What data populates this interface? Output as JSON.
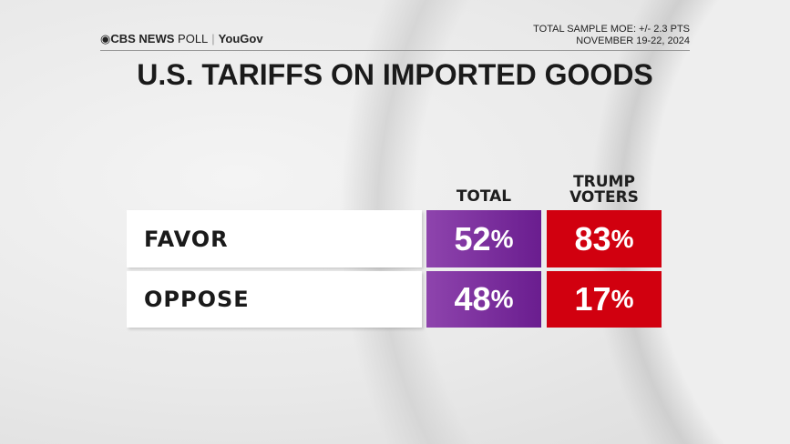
{
  "header": {
    "logo": "CBS NEWS POLL | YouGov",
    "logo_parts": {
      "brand": "CBS NEWS",
      "poll": "POLL",
      "partner": "YouGov"
    },
    "moe": "TOTAL SAMPLE MOE: +/- 2.3 PTS",
    "dates": "NOVEMBER 19-22, 2024"
  },
  "colors": {
    "total": "#7b2fa0",
    "trump_voters": "#d1000f"
  },
  "chart_data": {
    "type": "table",
    "title": "U.S. TARIFFS ON IMPORTED GOODS",
    "columns": [
      "TOTAL",
      "TRUMP VOTERS"
    ],
    "column_lines": [
      [
        "TOTAL"
      ],
      [
        "TRUMP",
        "VOTERS"
      ]
    ],
    "rows": [
      {
        "label": "FAVOR",
        "values": [
          52,
          83
        ],
        "display": [
          "52",
          "83"
        ]
      },
      {
        "label": "OPPOSE",
        "values": [
          48,
          17
        ],
        "display": [
          "48",
          "17"
        ]
      }
    ],
    "unit": "%"
  }
}
